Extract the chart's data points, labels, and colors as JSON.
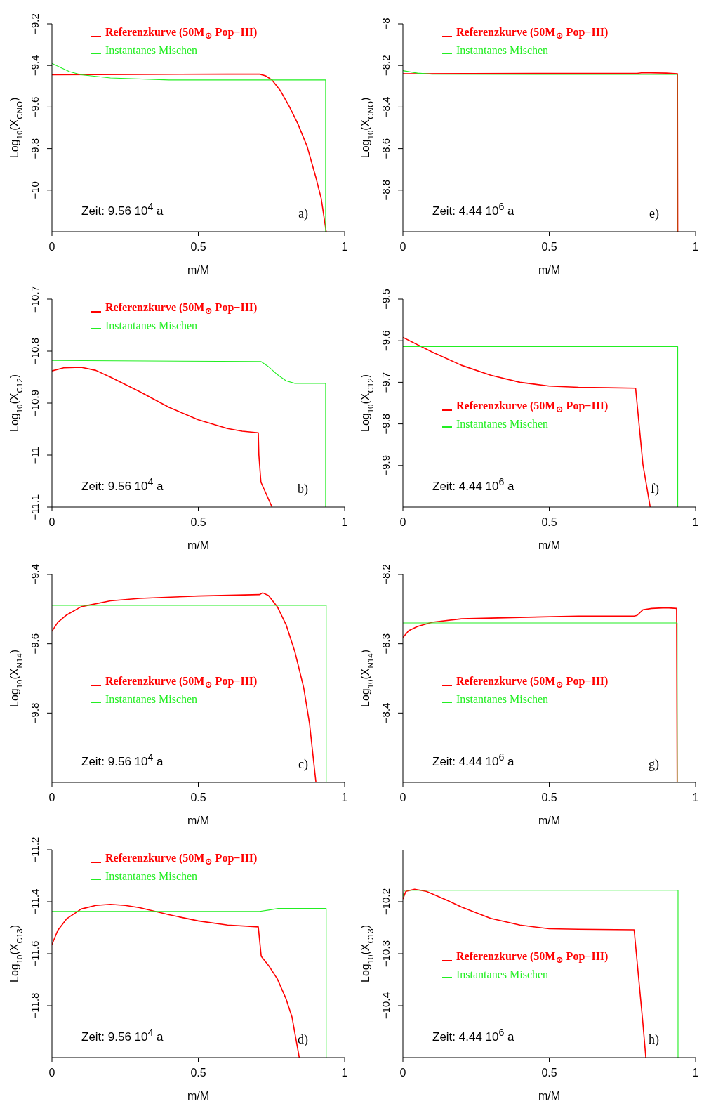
{
  "chart_data": [
    {
      "type": "line",
      "xlabel": "m/M",
      "ylabel": "Log$_{10}$(X$_{CNO}$)",
      "xlim": [
        0,
        1
      ],
      "xticks": [
        0,
        0.5,
        1
      ],
      "ylim": [
        -10.2,
        -9.2
      ],
      "yticks": [
        -10,
        -9.8,
        -9.6,
        -9.4,
        -9.2
      ],
      "legend": "top left",
      "annotations": [
        "Zeit: 9.56 10$^{4}$ a",
        "a)"
      ],
      "series": [
        {
          "name": "Referenzkurve (50M$_{⊙}$ Pop−III)",
          "color": "#ff0000",
          "x": [
            0,
            0.3,
            0.6,
            0.71,
            0.73,
            0.752,
            0.78,
            0.812,
            0.84,
            0.872,
            0.902,
            0.92,
            0.937
          ],
          "values": [
            -9.445,
            -9.443,
            -9.442,
            -9.442,
            -9.45,
            -9.47,
            -9.52,
            -9.6,
            -9.68,
            -9.79,
            -9.94,
            -10.04,
            -10.2
          ]
        },
        {
          "name": "Instantanes Mischen",
          "color": "#22ee22",
          "x": [
            0,
            0.03,
            0.06,
            0.1,
            0.2,
            0.4,
            0.935,
            0.935
          ],
          "values": [
            -9.39,
            -9.41,
            -9.43,
            -9.445,
            -9.46,
            -9.47,
            -9.47,
            -10.2
          ]
        }
      ]
    },
    {
      "type": "line",
      "xlabel": "m/M",
      "ylabel": "Log$_{10}$(X$_{CNO}$)",
      "xlim": [
        0,
        1
      ],
      "xticks": [
        0,
        0.5,
        1
      ],
      "ylim": [
        -9,
        -8
      ],
      "yticks": [
        -8.8,
        -8.6,
        -8.4,
        -8.2,
        -8
      ],
      "legend": "top left",
      "annotations": [
        "Zeit: 4.44 10$^{6}$ a",
        "e)"
      ],
      "series": [
        {
          "name": "Referenzkurve (50M$_{⊙}$ Pop−III)",
          "color": "#ff0000",
          "x": [
            0,
            0.5,
            0.8,
            0.82,
            0.9,
            0.938,
            0.939
          ],
          "values": [
            -8.24,
            -8.238,
            -8.238,
            -8.235,
            -8.237,
            -8.24,
            -9
          ]
        },
        {
          "name": "Instantanes Mischen",
          "color": "#22ee22",
          "x": [
            0,
            0.05,
            0.1,
            0.5,
            0.937,
            0.937
          ],
          "values": [
            -8.225,
            -8.237,
            -8.242,
            -8.243,
            -8.243,
            -9
          ]
        }
      ]
    },
    {
      "type": "line",
      "xlabel": "m/M",
      "ylabel": "Log$_{10}$(X$_{C12}$)",
      "xlim": [
        0,
        1
      ],
      "xticks": [
        0,
        0.5,
        1
      ],
      "ylim": [
        -11.1,
        -10.7
      ],
      "yticks": [
        -11.1,
        -11,
        -10.9,
        -10.8,
        -10.7
      ],
      "legend": "top left",
      "annotations": [
        "Zeit: 9.56 10$^{4}$ a",
        "b)"
      ],
      "series": [
        {
          "name": "Referenzkurve (50M$_{⊙}$ Pop−III)",
          "color": "#ff0000",
          "x": [
            0,
            0.04,
            0.1,
            0.15,
            0.2,
            0.3,
            0.4,
            0.5,
            0.6,
            0.65,
            0.705,
            0.707,
            0.714,
            0.752
          ],
          "values": [
            -10.838,
            -10.832,
            -10.831,
            -10.837,
            -10.85,
            -10.878,
            -10.908,
            -10.932,
            -10.949,
            -10.954,
            -10.957,
            -11.0,
            -11.052,
            -11.1
          ]
        },
        {
          "name": "Instantanes Mischen",
          "color": "#22ee22",
          "x": [
            0,
            0.714,
            0.74,
            0.77,
            0.8,
            0.83,
            0.935,
            0.935
          ],
          "values": [
            -10.818,
            -10.82,
            -10.83,
            -10.845,
            -10.857,
            -10.862,
            -10.862,
            -11.1
          ]
        }
      ]
    },
    {
      "type": "line",
      "xlabel": "m/M",
      "ylabel": "Log$_{10}$(X$_{C12}$)",
      "xlim": [
        0,
        1
      ],
      "xticks": [
        0,
        0.5,
        1
      ],
      "ylim": [
        -10,
        -9.5
      ],
      "yticks": [
        -9.9,
        -9.8,
        -9.7,
        -9.6,
        -9.5
      ],
      "legend": "center left",
      "annotations": [
        "Zeit: 4.44 10$^{6}$ a",
        "f)"
      ],
      "series": [
        {
          "name": "Referenzkurve (50M$_{⊙}$ Pop−III)",
          "color": "#ff0000",
          "x": [
            0,
            0.1,
            0.2,
            0.3,
            0.4,
            0.5,
            0.6,
            0.7,
            0.795,
            0.82,
            0.845
          ],
          "values": [
            -9.592,
            -9.627,
            -9.659,
            -9.683,
            -9.7,
            -9.709,
            -9.712,
            -9.713,
            -9.714,
            -9.897,
            -10
          ]
        },
        {
          "name": "Instantanes Mischen",
          "color": "#22ee22",
          "x": [
            0,
            0.939,
            0.939
          ],
          "values": [
            -9.614,
            -9.614,
            -10
          ]
        }
      ]
    },
    {
      "type": "line",
      "xlabel": "m/M",
      "ylabel": "Log$_{10}$(X$_{N14}$)",
      "xlim": [
        0,
        1
      ],
      "xticks": [
        0,
        0.5,
        1
      ],
      "ylim": [
        -10,
        -9.4
      ],
      "yticks": [
        -9.8,
        -9.6,
        -9.4
      ],
      "legend": "center left",
      "annotations": [
        "Zeit: 9.56 10$^{4}$ a",
        "c)"
      ],
      "series": [
        {
          "name": "Referenzkurve (50M$_{⊙}$ Pop−III)",
          "color": "#ff0000",
          "x": [
            0,
            0.02,
            0.05,
            0.1,
            0.2,
            0.3,
            0.5,
            0.71,
            0.72,
            0.74,
            0.77,
            0.8,
            0.83,
            0.86,
            0.88,
            0.9,
            0.902
          ],
          "values": [
            -9.564,
            -9.538,
            -9.517,
            -9.493,
            -9.476,
            -9.469,
            -9.462,
            -9.458,
            -9.453,
            -9.461,
            -9.493,
            -9.545,
            -9.623,
            -9.726,
            -9.83,
            -9.985,
            -10
          ]
        },
        {
          "name": "Instantanes Mischen",
          "color": "#22ee22",
          "x": [
            0,
            0.937,
            0.937
          ],
          "values": [
            -9.489,
            -9.489,
            -10
          ]
        }
      ]
    },
    {
      "type": "line",
      "xlabel": "m/M",
      "ylabel": "Log$_{10}$(X$_{N14}$)",
      "xlim": [
        0,
        1
      ],
      "xticks": [
        0,
        0.5,
        1
      ],
      "ylim": [
        -8.5,
        -8.2
      ],
      "yticks": [
        -8.4,
        -8.3,
        -8.2
      ],
      "legend": "center left",
      "annotations": [
        "Zeit: 4.44 10$^{6}$ a",
        "g)"
      ],
      "series": [
        {
          "name": "Referenzkurve (50M$_{⊙}$ Pop−III)",
          "color": "#ff0000",
          "x": [
            0,
            0.02,
            0.05,
            0.1,
            0.2,
            0.4,
            0.6,
            0.79,
            0.8,
            0.82,
            0.85,
            0.9,
            0.935,
            0.937
          ],
          "values": [
            -8.291,
            -8.281,
            -8.275,
            -8.269,
            -8.264,
            -8.262,
            -8.26,
            -8.26,
            -8.259,
            -8.251,
            -8.249,
            -8.248,
            -8.249,
            -8.5
          ]
        },
        {
          "name": "Instantanes Mischen",
          "color": "#22ee22",
          "x": [
            0,
            0.937,
            0.937
          ],
          "values": [
            -8.27,
            -8.27,
            -8.5
          ]
        }
      ]
    },
    {
      "type": "line",
      "xlabel": "m/M",
      "ylabel": "Log$_{10}$(X$_{C13}$)",
      "xlim": [
        0,
        1
      ],
      "xticks": [
        0,
        0.5,
        1
      ],
      "ylim": [
        -12,
        -11.2
      ],
      "yticks": [
        -11.8,
        -11.6,
        -11.4,
        -11.2
      ],
      "legend": "top left",
      "annotations": [
        "Zeit: 9.56 10$^{4}$ a",
        "d)"
      ],
      "series": [
        {
          "name": "Referenzkurve (50M$_{⊙}$ Pop−III)",
          "color": "#ff0000",
          "x": [
            0,
            0.02,
            0.05,
            0.1,
            0.15,
            0.2,
            0.25,
            0.3,
            0.4,
            0.5,
            0.6,
            0.705,
            0.715,
            0.74,
            0.77,
            0.8,
            0.82,
            0.845
          ],
          "values": [
            -11.565,
            -11.51,
            -11.466,
            -11.428,
            -11.414,
            -11.41,
            -11.414,
            -11.423,
            -11.45,
            -11.474,
            -11.49,
            -11.497,
            -11.61,
            -11.645,
            -11.697,
            -11.774,
            -11.843,
            -12
          ]
        },
        {
          "name": "Instantanes Mischen",
          "color": "#22ee22",
          "x": [
            0,
            0.71,
            0.74,
            0.773,
            0.937,
            0.937
          ],
          "values": [
            -11.437,
            -11.437,
            -11.432,
            -11.426,
            -11.426,
            -12
          ]
        }
      ]
    },
    {
      "type": "line",
      "xlabel": "m/M",
      "ylabel": "Log$_{10}$(X$_{C13}$)",
      "xlim": [
        0,
        1
      ],
      "xticks": [
        0,
        0.5,
        1
      ],
      "ylim": [
        -10.5,
        -10.1
      ],
      "yticks": [
        -10.4,
        -10.3,
        -10.2
      ],
      "legend": "center left",
      "annotations": [
        "Zeit: 4.44 10$^{6}$ a",
        "h)"
      ],
      "series": [
        {
          "name": "Referenzkurve (50M$_{⊙}$ Pop−III)",
          "color": "#ff0000",
          "x": [
            0,
            0.01,
            0.04,
            0.08,
            0.15,
            0.2,
            0.3,
            0.4,
            0.5,
            0.6,
            0.79,
            0.82,
            0.83
          ],
          "values": [
            -10.195,
            -10.18,
            -10.176,
            -10.18,
            -10.197,
            -10.21,
            -10.232,
            -10.245,
            -10.252,
            -10.253,
            -10.254,
            -10.434,
            -10.5
          ]
        },
        {
          "name": "Instantanes Mischen",
          "color": "#22ee22",
          "x": [
            0,
            0.005,
            0.94,
            0.94
          ],
          "values": [
            -10.19,
            -10.178,
            -10.178,
            -10.5
          ]
        }
      ]
    }
  ]
}
